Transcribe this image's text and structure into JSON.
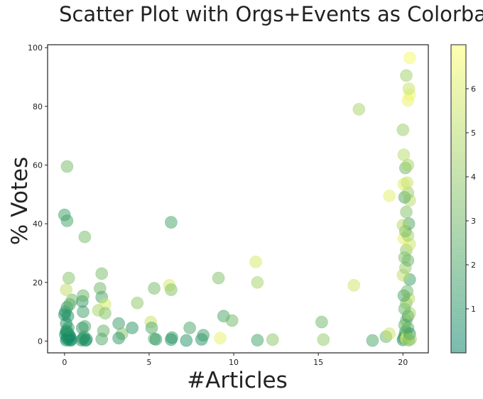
{
  "chart_data": {
    "type": "scatter",
    "title": "Scatter Plot with Orgs+Events as Colorbar",
    "xlabel": "#Articles",
    "ylabel": "% Votes",
    "xlim": [
      -1,
      21.5
    ],
    "ylim": [
      -4,
      101
    ],
    "xticks": [
      0,
      5,
      10,
      15,
      20
    ],
    "yticks": [
      0,
      20,
      40,
      60,
      80,
      100
    ],
    "colorbar": {
      "min": 0,
      "max": 7,
      "ticks": [
        1,
        2,
        3,
        4,
        5,
        6
      ],
      "colormap": "summer"
    },
    "grid": false,
    "points": [
      [
        0.1,
        0.3,
        0.5
      ],
      [
        0.15,
        0.8,
        0.8
      ],
      [
        0.2,
        1.2,
        1.0
      ],
      [
        0.25,
        0.5,
        1.2
      ],
      [
        0.3,
        1.8,
        0.6
      ],
      [
        0.05,
        2.2,
        0.9
      ],
      [
        0.1,
        3.0,
        0.7
      ],
      [
        0.35,
        0.2,
        1.1
      ],
      [
        0.4,
        0.6,
        0.5
      ],
      [
        0.2,
        2.6,
        1.3
      ],
      [
        0.3,
        1.5,
        0.4
      ],
      [
        0.12,
        3.5,
        0.6
      ],
      [
        0.22,
        4.5,
        1.5
      ],
      [
        0.1,
        6.0,
        1.0
      ],
      [
        0.2,
        8.5,
        0.8
      ],
      [
        0.05,
        10.0,
        1.2
      ],
      [
        0.15,
        11.5,
        1.7
      ],
      [
        0.3,
        12.5,
        2.0
      ],
      [
        0.45,
        14.0,
        3.0
      ],
      [
        0.1,
        17.5,
        5.2
      ],
      [
        0.25,
        21.5,
        3.6
      ],
      [
        0.0,
        43.0,
        1.6
      ],
      [
        0.15,
        41.0,
        1.8
      ],
      [
        0.15,
        59.5,
        3.2
      ],
      [
        0.0,
        9.0,
        0.9
      ],
      [
        1.0,
        0.3,
        1.0
      ],
      [
        1.1,
        0.8,
        1.2
      ],
      [
        1.25,
        0.2,
        0.7
      ],
      [
        1.15,
        1.5,
        1.4
      ],
      [
        1.05,
        4.5,
        1.1
      ],
      [
        1.2,
        5.0,
        2.0
      ],
      [
        1.1,
        10.0,
        1.7
      ],
      [
        1.05,
        13.5,
        1.3
      ],
      [
        1.1,
        15.5,
        2.8
      ],
      [
        1.2,
        35.5,
        3.2
      ],
      [
        1.3,
        0.6,
        0.8
      ],
      [
        2.0,
        10.5,
        4.5
      ],
      [
        2.1,
        18.0,
        3.0
      ],
      [
        2.2,
        23.0,
        3.3
      ],
      [
        2.2,
        15.0,
        2.0
      ],
      [
        2.4,
        12.5,
        5.8
      ],
      [
        2.4,
        9.5,
        3.6
      ],
      [
        2.3,
        3.5,
        2.6
      ],
      [
        2.2,
        0.7,
        2.2
      ],
      [
        3.2,
        6.0,
        1.5
      ],
      [
        3.4,
        2.5,
        3.5
      ],
      [
        3.2,
        1.0,
        1.2
      ],
      [
        4.0,
        4.5,
        1.1
      ],
      [
        4.3,
        13.0,
        3.8
      ],
      [
        5.1,
        6.5,
        5.4
      ],
      [
        5.15,
        4.5,
        2.2
      ],
      [
        5.3,
        18.0,
        3.2
      ],
      [
        5.3,
        0.8,
        2.6
      ],
      [
        5.4,
        0.6,
        1.3
      ],
      [
        6.2,
        19.0,
        5.8
      ],
      [
        6.3,
        17.5,
        3.5
      ],
      [
        6.3,
        40.5,
        1.8
      ],
      [
        6.35,
        1.2,
        1.4
      ],
      [
        6.3,
        0.5,
        1.0
      ],
      [
        7.2,
        0.2,
        1.0
      ],
      [
        7.4,
        4.5,
        2.0
      ],
      [
        8.1,
        0.6,
        0.9
      ],
      [
        8.2,
        2.0,
        1.6
      ],
      [
        9.1,
        21.5,
        3.5
      ],
      [
        9.2,
        1.0,
        6.3
      ],
      [
        9.4,
        8.5,
        2.0
      ],
      [
        9.9,
        7.0,
        3.0
      ],
      [
        11.3,
        27.0,
        5.8
      ],
      [
        11.4,
        20.0,
        4.5
      ],
      [
        11.4,
        0.3,
        1.8
      ],
      [
        12.3,
        0.5,
        3.8
      ],
      [
        15.2,
        6.5,
        3.0
      ],
      [
        15.3,
        0.5,
        4.0
      ],
      [
        17.1,
        19.0,
        5.6
      ],
      [
        17.4,
        79.0,
        4.6
      ],
      [
        18.2,
        0.2,
        2.0
      ],
      [
        19.0,
        1.5,
        2.8
      ],
      [
        19.2,
        2.5,
        5.5
      ],
      [
        19.2,
        49.5,
        6.2
      ],
      [
        20.0,
        0.4,
        1.0
      ],
      [
        20.05,
        1.0,
        1.4
      ],
      [
        20.1,
        2.0,
        1.8
      ],
      [
        20.15,
        3.2,
        2.2
      ],
      [
        20.2,
        0.8,
        6.5
      ],
      [
        20.25,
        1.5,
        5.8
      ],
      [
        20.3,
        4.5,
        2.4
      ],
      [
        20.35,
        0.3,
        3.0
      ],
      [
        20.4,
        2.5,
        1.2
      ],
      [
        20.45,
        0.7,
        4.2
      ],
      [
        20.1,
        5.5,
        2.6
      ],
      [
        20.2,
        7.0,
        3.2
      ],
      [
        20.3,
        8.5,
        1.5
      ],
      [
        20.4,
        9.5,
        4.5
      ],
      [
        20.1,
        11.0,
        2.8
      ],
      [
        20.2,
        13.0,
        3.6
      ],
      [
        20.35,
        14.5,
        5.0
      ],
      [
        20.05,
        15.5,
        2.0
      ],
      [
        20.25,
        17.0,
        3.0
      ],
      [
        20.4,
        21.0,
        1.6
      ],
      [
        20.0,
        22.5,
        5.2
      ],
      [
        20.15,
        25.0,
        4.0
      ],
      [
        20.3,
        27.5,
        2.8
      ],
      [
        20.1,
        28.5,
        3.4
      ],
      [
        20.2,
        31.0,
        3.8
      ],
      [
        20.4,
        33.0,
        5.6
      ],
      [
        20.05,
        35.0,
        6.2
      ],
      [
        20.3,
        36.0,
        4.5
      ],
      [
        20.15,
        37.5,
        3.2
      ],
      [
        20.35,
        40.0,
        2.0
      ],
      [
        20.0,
        39.5,
        4.8
      ],
      [
        20.2,
        44.0,
        3.6
      ],
      [
        20.4,
        48.0,
        5.0
      ],
      [
        20.1,
        49.0,
        2.2
      ],
      [
        20.3,
        50.5,
        4.2
      ],
      [
        20.05,
        53.5,
        6.0
      ],
      [
        20.25,
        54.0,
        5.4
      ],
      [
        20.15,
        59.0,
        3.0
      ],
      [
        20.3,
        60.0,
        4.6
      ],
      [
        20.05,
        63.5,
        5.0
      ],
      [
        20.0,
        72.0,
        4.2
      ],
      [
        20.3,
        82.0,
        6.4
      ],
      [
        20.4,
        84.0,
        6.6
      ],
      [
        20.35,
        86.0,
        5.4
      ],
      [
        20.2,
        90.5,
        4.4
      ],
      [
        20.4,
        96.5,
        6.7
      ]
    ]
  }
}
